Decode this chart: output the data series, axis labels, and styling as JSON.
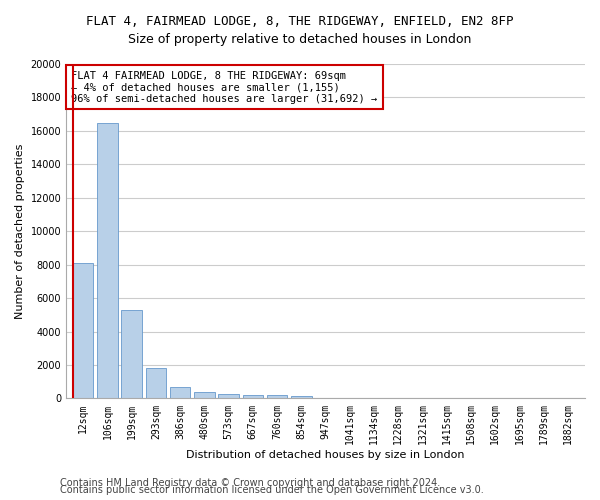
{
  "title1": "FLAT 4, FAIRMEAD LODGE, 8, THE RIDGEWAY, ENFIELD, EN2 8FP",
  "title2": "Size of property relative to detached houses in London",
  "xlabel": "Distribution of detached houses by size in London",
  "ylabel": "Number of detached properties",
  "categories": [
    "12sqm",
    "106sqm",
    "199sqm",
    "293sqm",
    "386sqm",
    "480sqm",
    "573sqm",
    "667sqm",
    "760sqm",
    "854sqm",
    "947sqm",
    "1041sqm",
    "1134sqm",
    "1228sqm",
    "1321sqm",
    "1415sqm",
    "1508sqm",
    "1602sqm",
    "1695sqm",
    "1789sqm",
    "1882sqm"
  ],
  "values": [
    8100,
    16500,
    5300,
    1850,
    700,
    380,
    280,
    220,
    190,
    150,
    0,
    0,
    0,
    0,
    0,
    0,
    0,
    0,
    0,
    0,
    0
  ],
  "bar_color": "#b8d0e8",
  "bar_edge_color": "#6699cc",
  "marker_color": "#cc0000",
  "annotation_text": "FLAT 4 FAIRMEAD LODGE, 8 THE RIDGEWAY: 69sqm\n← 4% of detached houses are smaller (1,155)\n96% of semi-detached houses are larger (31,692) →",
  "annotation_box_color": "#ffffff",
  "annotation_box_edge": "#cc0000",
  "ylim": [
    0,
    20000
  ],
  "yticks": [
    0,
    2000,
    4000,
    6000,
    8000,
    10000,
    12000,
    14000,
    16000,
    18000,
    20000
  ],
  "footer1": "Contains HM Land Registry data © Crown copyright and database right 2024.",
  "footer2": "Contains public sector information licensed under the Open Government Licence v3.0.",
  "bg_color": "#ffffff",
  "plot_bg_color": "#ffffff",
  "grid_color": "#cccccc",
  "title1_fontsize": 9,
  "title2_fontsize": 9,
  "axis_fontsize": 8,
  "tick_fontsize": 7,
  "footer_fontsize": 7
}
